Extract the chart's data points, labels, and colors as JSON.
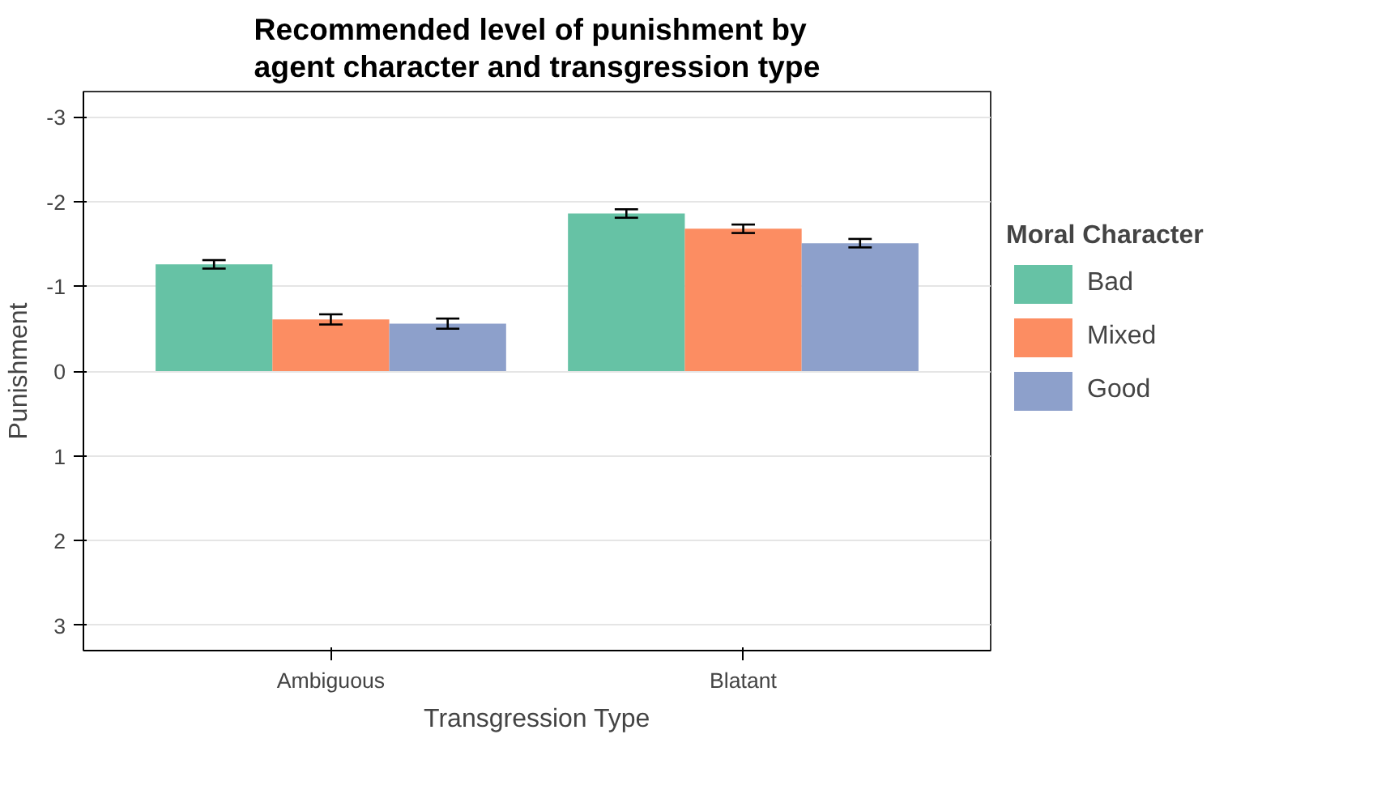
{
  "chart_data": {
    "type": "bar",
    "title": "Recommended level of punishment by\nagent character and transgression type",
    "xlabel": "Transgression Type",
    "ylabel": "Punishment",
    "legend_title": "Moral Character",
    "categories": [
      "Ambiguous",
      "Blatant"
    ],
    "series": [
      {
        "name": "Bad",
        "color": "#66c2a5",
        "values": [
          -1.26,
          -1.86
        ],
        "errors": [
          0.05,
          0.05
        ]
      },
      {
        "name": "Mixed",
        "color": "#fc8d62",
        "values": [
          -0.61,
          -1.68
        ],
        "errors": [
          0.06,
          0.05
        ]
      },
      {
        "name": "Good",
        "color": "#8da0cb",
        "values": [
          -0.56,
          -1.51
        ],
        "errors": [
          0.06,
          0.05
        ]
      }
    ],
    "ylim": [
      3.3,
      -3.3
    ],
    "yticks": [
      -3,
      -2,
      -1,
      0,
      1,
      2,
      3
    ],
    "grid": "y",
    "legend": "right"
  }
}
